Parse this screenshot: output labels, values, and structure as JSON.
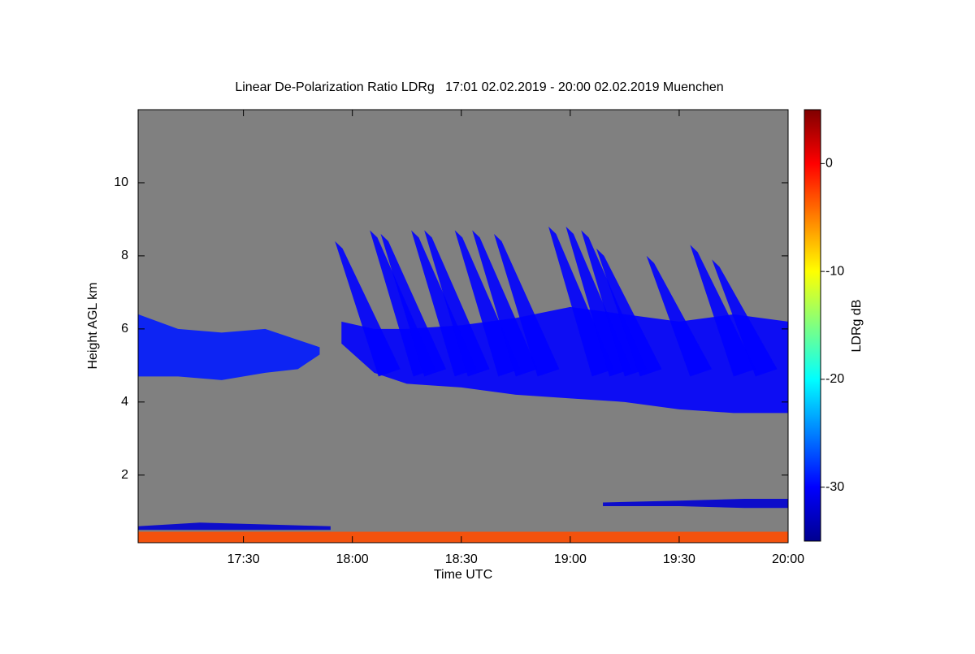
{
  "chart_data": {
    "type": "heatmap",
    "title": "Linear De-Polarization Ratio LDRg   17:01 02.02.2019 - 20:00 02.02.2019 Muenchen",
    "xlabel": "Time UTC",
    "ylabel": "Height AGL km",
    "colorbar_label": "LDRg dB",
    "xlim": [
      17.0167,
      20.0
    ],
    "xticks": [
      {
        "value": 17.5,
        "label": "17:30"
      },
      {
        "value": 18.0,
        "label": "18:00"
      },
      {
        "value": 18.5,
        "label": "18:30"
      },
      {
        "value": 19.0,
        "label": "19:00"
      },
      {
        "value": 19.5,
        "label": "19:30"
      },
      {
        "value": 20.0,
        "label": "20:00"
      }
    ],
    "ylim": [
      0.15,
      12
    ],
    "yticks": [
      2,
      4,
      6,
      8,
      10
    ],
    "zlim": [
      -35,
      5
    ],
    "zticks": [
      -30,
      -20,
      -10,
      0
    ],
    "colormap": [
      "#00008f",
      "#0000ff",
      "#0080ff",
      "#00ffff",
      "#80ff80",
      "#ffff00",
      "#ff8000",
      "#ff0000",
      "#800000"
    ],
    "nodata_color": "#808080",
    "layers": [
      {
        "x": [
          17.0167,
          17.2,
          17.4,
          17.6,
          17.75,
          17.85
        ],
        "base": [
          4.7,
          4.7,
          4.6,
          4.8,
          4.9,
          5.3
        ],
        "top": [
          6.4,
          6.0,
          5.9,
          6.0,
          5.7,
          5.5
        ],
        "value": -29
      },
      {
        "x": [
          17.95,
          18.1,
          18.25,
          18.5,
          18.75,
          19.0,
          19.25,
          19.5,
          19.75,
          20.0
        ],
        "base": [
          5.6,
          4.8,
          4.5,
          4.4,
          4.2,
          4.1,
          4.0,
          3.8,
          3.7,
          3.7
        ],
        "top": [
          6.2,
          6.0,
          6.0,
          6.1,
          6.3,
          6.6,
          6.4,
          6.2,
          6.4,
          6.2
        ],
        "value": -30
      },
      {
        "x": [
          19.15,
          19.5,
          19.8,
          20.0
        ],
        "base": [
          1.15,
          1.15,
          1.1,
          1.1
        ],
        "top": [
          1.25,
          1.3,
          1.35,
          1.35
        ],
        "value": -32
      },
      {
        "x": [
          17.0167,
          17.3,
          17.6,
          17.9
        ],
        "base": [
          0.5,
          0.5,
          0.5,
          0.5
        ],
        "top": [
          0.6,
          0.7,
          0.65,
          0.6
        ],
        "value": -32
      },
      {
        "x": [
          17.0167,
          20.0
        ],
        "base": [
          0.15,
          0.15
        ],
        "top": [
          0.45,
          0.45
        ],
        "value": -3
      }
    ],
    "streaks": {
      "x": [
        17.92,
        18.08,
        18.13,
        18.27,
        18.33,
        18.47,
        18.55,
        18.65,
        18.9,
        18.98,
        19.05,
        19.12,
        19.35,
        19.55,
        19.65
      ],
      "top": [
        8.4,
        8.7,
        8.6,
        8.7,
        8.7,
        8.7,
        8.7,
        8.6,
        8.8,
        8.8,
        8.7,
        8.2,
        8.0,
        8.3,
        7.9
      ],
      "value": -30
    }
  }
}
